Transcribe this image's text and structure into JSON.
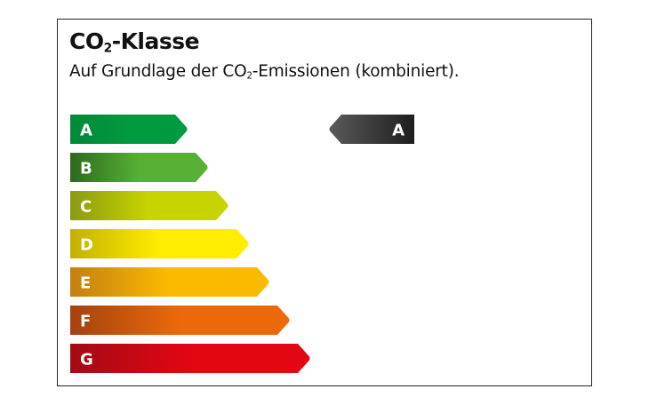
{
  "title": {
    "prefix": "CO",
    "sub": "2",
    "suffix": "-Klasse"
  },
  "subtitle": {
    "prefix": "Auf Grundlage der CO",
    "sub": "2",
    "suffix": "-Emissionen (kombiniert)."
  },
  "classes": [
    {
      "label": "A",
      "color": "#009a3e",
      "dark": "#00893a"
    },
    {
      "label": "B",
      "color": "#55b033",
      "dark": "#2e6a1e"
    },
    {
      "label": "C",
      "color": "#c8d400",
      "dark": "#8b9a12"
    },
    {
      "label": "D",
      "color": "#ffed00",
      "dark": "#c3b000"
    },
    {
      "label": "E",
      "color": "#fbba00",
      "dark": "#c47f12"
    },
    {
      "label": "F",
      "color": "#eb690b",
      "dark": "#a5420f"
    },
    {
      "label": "G",
      "color": "#e30613",
      "dark": "#a20a14"
    }
  ],
  "rating": {
    "label": "A",
    "color": "#2a2a2a"
  }
}
